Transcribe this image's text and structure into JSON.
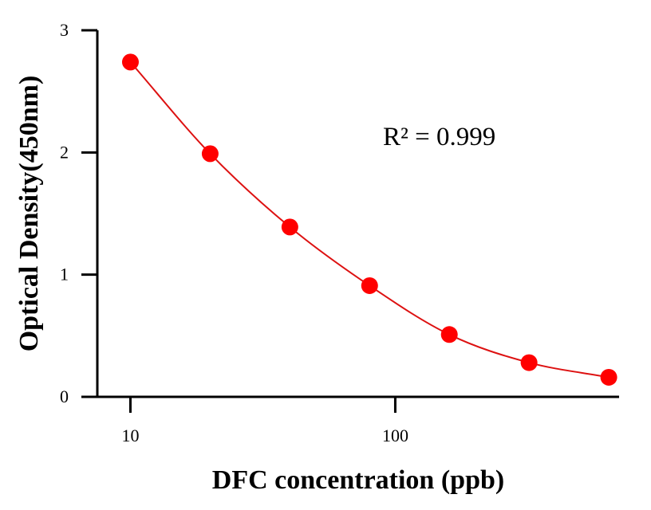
{
  "chart_data": {
    "type": "scatter",
    "title": "",
    "xlabel": "DFC concentration (ppb)",
    "ylabel": "Optical Density(450nm)",
    "x_scale": "log",
    "xlim": [
      7.5,
      700
    ],
    "ylim": [
      0,
      3
    ],
    "x_ticks": [
      10,
      100
    ],
    "x_tick_labels": [
      "10",
      "100"
    ],
    "y_ticks": [
      0,
      1,
      2,
      3
    ],
    "y_tick_labels": [
      "0",
      "1",
      "2",
      "3"
    ],
    "grid": false,
    "legend": "none",
    "series": [
      {
        "x": [
          10,
          20,
          40,
          80,
          160,
          320,
          640
        ],
        "y": [
          2.74,
          1.99,
          1.39,
          0.91,
          0.51,
          0.28,
          0.16
        ],
        "color": "#ff0000",
        "line_color": "#dd1111",
        "fit": "smooth curve"
      }
    ],
    "annotation": {
      "text": "R² = 0.999"
    }
  }
}
